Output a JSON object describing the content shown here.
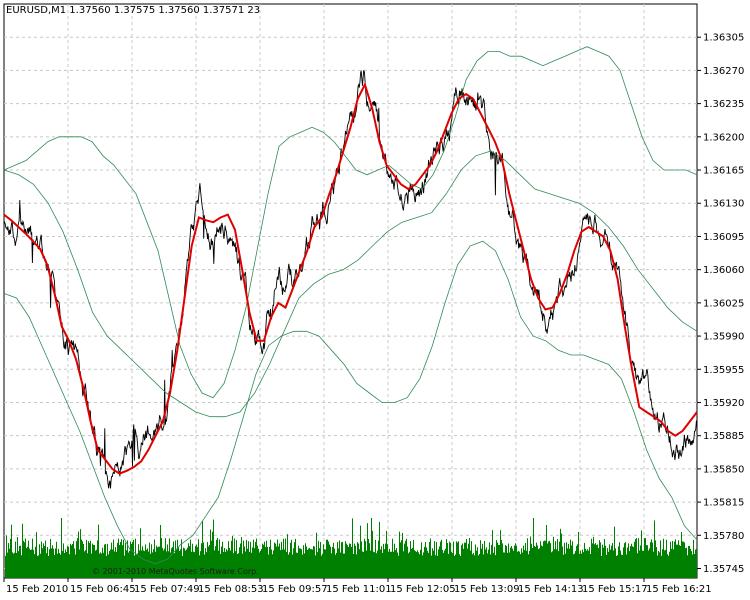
{
  "chart_data": {
    "type": "line",
    "title": "EURUSD,M1  1.37560 1.37575 1.37560 1.37571  23",
    "copyright": "© 2001-2010 MetaQuotes Software Corp.",
    "xlabel": "",
    "ylabel": "",
    "ylim": [
      1.35735,
      1.3634
    ],
    "x_ticks": [
      "15 Feb 2010",
      "15 Feb 06:45",
      "15 Feb 07:49",
      "15 Feb 08:53",
      "15 Feb 09:57",
      "15 Feb 11:01",
      "15 Feb 12:05",
      "15 Feb 13:09",
      "15 Feb 14:13",
      "15 Feb 15:17",
      "15 Feb 16:21"
    ],
    "y_ticks": [
      "1.36305",
      "1.36270",
      "1.36235",
      "1.36200",
      "1.36165",
      "1.36130",
      "1.36095",
      "1.36060",
      "1.36025",
      "1.35990",
      "1.35955",
      "1.35920",
      "1.35885",
      "1.35850",
      "1.35815",
      "1.35780",
      "1.35745"
    ],
    "grid": true,
    "legend": "none",
    "colors": {
      "price": "#000000",
      "moving_average": "#e00000",
      "bands": "#2e8b57",
      "volume": "#008000",
      "grid": "#c8c8c8"
    },
    "series": [
      {
        "values": [
          1.36118,
          1.36112,
          1.36105,
          1.36098,
          1.3609,
          1.36082,
          1.36065,
          1.36035,
          1.36,
          1.35985,
          1.35965,
          1.35935,
          1.359,
          1.3587,
          1.3586,
          1.3585,
          1.35845,
          1.35848,
          1.35852,
          1.35858,
          1.3587,
          1.35885,
          1.359,
          1.3593,
          1.35975,
          1.3603,
          1.36085,
          1.36115,
          1.36112,
          1.3611,
          1.36115,
          1.36118,
          1.36102,
          1.3606,
          1.36015,
          1.35985,
          1.35985,
          1.3601,
          1.36025,
          1.3602,
          1.3604,
          1.3606,
          1.3608,
          1.36105,
          1.36115,
          1.36138,
          1.3616,
          1.36185,
          1.3621,
          1.3624,
          1.36255,
          1.3623,
          1.36195,
          1.3617,
          1.3616,
          1.3615,
          1.36145,
          1.3615,
          1.3616,
          1.3617,
          1.36185,
          1.36205,
          1.36225,
          1.3624,
          1.36245,
          1.3624,
          1.36225,
          1.3621,
          1.36195,
          1.36175,
          1.3614,
          1.3611,
          1.3608,
          1.3605,
          1.3603,
          1.36018,
          1.3602,
          1.36035,
          1.36055,
          1.3608,
          1.361,
          1.36105,
          1.361,
          1.36095,
          1.3608,
          1.3605,
          1.36,
          1.35955,
          1.35915,
          1.3591,
          1.35905,
          1.359,
          1.3589,
          1.35885,
          1.3589,
          1.359,
          1.3591
        ]
      },
      {
        "values": [
          1.36165,
          1.3617,
          1.36175,
          1.36185,
          1.36195,
          1.362,
          1.362,
          1.362,
          1.36195,
          1.3618,
          1.3617,
          1.36155,
          1.3614,
          1.3611,
          1.3608,
          1.3603,
          1.3598,
          1.3595,
          1.3593,
          1.35925,
          1.3594,
          1.35975,
          1.3602,
          1.3608,
          1.3614,
          1.3619,
          1.362,
          1.36205,
          1.3621,
          1.36205,
          1.36195,
          1.3618,
          1.36165,
          1.3616,
          1.36165,
          1.3617,
          1.3616,
          1.3615,
          1.36145,
          1.3616,
          1.36185,
          1.3622,
          1.3626,
          1.3628,
          1.3629,
          1.3629,
          1.36285,
          1.36285,
          1.3628,
          1.36275,
          1.3628,
          1.36285,
          1.3629,
          1.36295,
          1.3629,
          1.36285,
          1.3627,
          1.36235,
          1.362,
          1.36175,
          1.36165,
          1.36165,
          1.36165,
          1.3616
        ]
      },
      {
        "values": [
          1.36035,
          1.3603,
          1.3601,
          1.3598,
          1.3595,
          1.3592,
          1.3589,
          1.35855,
          1.3582,
          1.3579,
          1.35765,
          1.35755,
          1.3575,
          1.35755,
          1.3577,
          1.3578,
          1.358,
          1.3582,
          1.3586,
          1.35905,
          1.3595,
          1.3598,
          1.3599,
          1.35995,
          1.35995,
          1.3599,
          1.35975,
          1.3596,
          1.3594,
          1.3593,
          1.3592,
          1.3592,
          1.35925,
          1.35945,
          1.3598,
          1.36025,
          1.36065,
          1.36085,
          1.3609,
          1.3608,
          1.3605,
          1.3601,
          1.3599,
          1.35985,
          1.35975,
          1.3597,
          1.3597,
          1.35965,
          1.3596,
          1.35945,
          1.3591,
          1.3587,
          1.3584,
          1.3582,
          1.3579,
          1.35775
        ]
      },
      {
        "values": [
          1.36165,
          1.3616,
          1.3615,
          1.3613,
          1.361,
          1.3606,
          1.36015,
          1.3599,
          1.35975,
          1.3596,
          1.35945,
          1.3593,
          1.3592,
          1.3591,
          1.35905,
          1.35905,
          1.3591,
          1.3593,
          1.3596,
          1.35995,
          1.3603,
          1.36045,
          1.36055,
          1.3606,
          1.3607,
          1.36085,
          1.361,
          1.3611,
          1.36115,
          1.3612,
          1.3614,
          1.36165,
          1.3618,
          1.36185,
          1.36175,
          1.3616,
          1.36145,
          1.3614,
          1.36135,
          1.3613,
          1.3612,
          1.36105,
          1.36085,
          1.3606,
          1.3604,
          1.3602,
          1.36005,
          1.35995
        ]
      }
    ],
    "volume": {
      "style": "histogram"
    }
  }
}
